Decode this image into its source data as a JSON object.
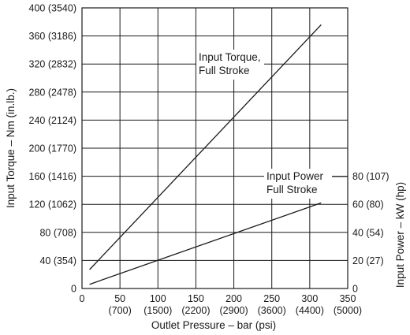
{
  "chart_data": {
    "type": "line",
    "xlabel": "Outlet Pressure – bar (psi)",
    "xlim": [
      0,
      350
    ],
    "x_ticks": [
      {
        "value": 0,
        "label": "0",
        "sublabel": ""
      },
      {
        "value": 50,
        "label": "50",
        "sublabel": "(700)"
      },
      {
        "value": 100,
        "label": "100",
        "sublabel": "(1500)"
      },
      {
        "value": 150,
        "label": "150",
        "sublabel": "(2200)"
      },
      {
        "value": 200,
        "label": "200",
        "sublabel": "(2900)"
      },
      {
        "value": 250,
        "label": "250",
        "sublabel": "(3600)"
      },
      {
        "value": 300,
        "label": "300",
        "sublabel": "(4400)"
      },
      {
        "value": 350,
        "label": "350",
        "sublabel": "(5000)"
      }
    ],
    "ylabel_left": "Input Torque – Nm (in.lb.)",
    "ylim_left": [
      0,
      400
    ],
    "y_ticks_left": [
      {
        "value": 0,
        "label": "0"
      },
      {
        "value": 40,
        "label": "40 (354)"
      },
      {
        "value": 80,
        "label": "80 (708)"
      },
      {
        "value": 120,
        "label": "120 (1062)"
      },
      {
        "value": 160,
        "label": "160 (1416)"
      },
      {
        "value": 200,
        "label": "200 (1770)"
      },
      {
        "value": 240,
        "label": "240 (2124)"
      },
      {
        "value": 280,
        "label": "280 (2478)"
      },
      {
        "value": 320,
        "label": "320 (2832)"
      },
      {
        "value": 360,
        "label": "360 (3186)"
      },
      {
        "value": 400,
        "label": "400 (3540)"
      }
    ],
    "ylabel_right": "Input Power – kW (hp)",
    "ylim_right": [
      0,
      200
    ],
    "y_ticks_right": [
      {
        "value": 0,
        "label": "0"
      },
      {
        "value": 20,
        "label": "20 (27)"
      },
      {
        "value": 40,
        "label": "40 (54)"
      },
      {
        "value": 60,
        "label": "60 (80)"
      },
      {
        "value": 80,
        "label": "80 (107)"
      }
    ],
    "grid": true,
    "series": [
      {
        "axis": "left",
        "x": [
          10,
          315
        ],
        "y": [
          27,
          376
        ]
      },
      {
        "axis": "right",
        "x": [
          10,
          315
        ],
        "y": [
          3,
          61
        ]
      }
    ],
    "annotations": [
      {
        "lines": [
          "Input Torque,",
          "Full Stroke"
        ]
      },
      {
        "lines": [
          "Input Power",
          "Full Stroke"
        ]
      }
    ]
  }
}
